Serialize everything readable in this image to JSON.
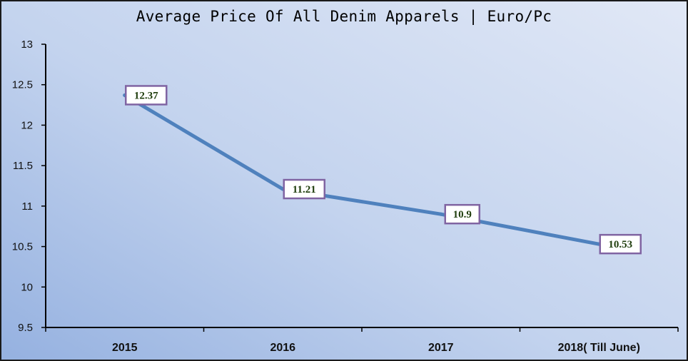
{
  "chart_data": {
    "type": "line",
    "title": "Average Price Of All Denim Apparels | Euro/Pc",
    "xlabel": "",
    "ylabel": "",
    "categories": [
      "2015",
      "2016",
      "2017",
      "2018( Till June)"
    ],
    "series": [
      {
        "values": [
          12.37,
          11.21,
          10.9,
          10.53
        ],
        "labels": [
          "12.37",
          "11.21",
          "10.9",
          "10.53"
        ]
      }
    ],
    "yticks": [
      "9.5",
      "10",
      "10.5",
      "11",
      "11.5",
      "12",
      "12.5",
      "13"
    ],
    "ylim": [
      9.5,
      13
    ],
    "grid": false,
    "legend": "none",
    "colors": {
      "line": "#4f81bd",
      "label_border": "#8064a2",
      "label_text": "#1f3d0c",
      "axis": "#000000"
    }
  }
}
